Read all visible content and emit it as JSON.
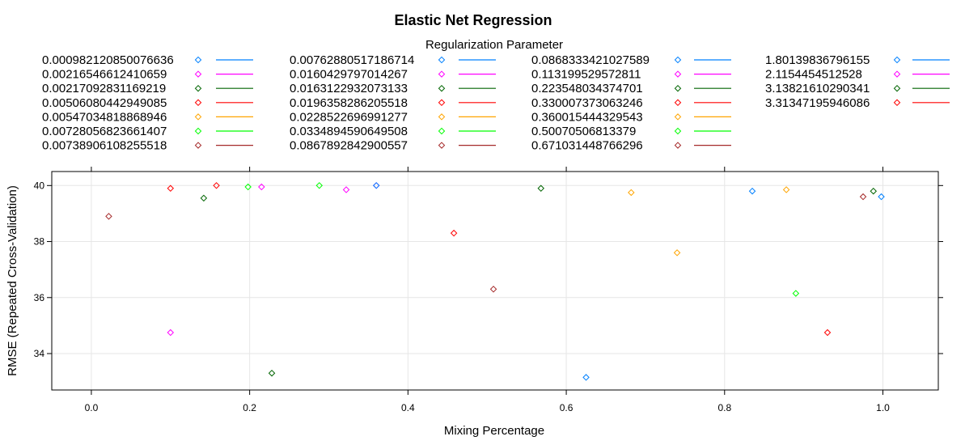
{
  "chart_data": {
    "type": "scatter",
    "title": "Elastic Net Regression",
    "legend_title": "Regularization Parameter",
    "legend_placement": "top",
    "xlabel": "Mixing Percentage",
    "ylabel": "RMSE (Repeated Cross-Validation)",
    "xlim": [
      -0.05,
      1.07
    ],
    "ylim": [
      32.7,
      40.5
    ],
    "x_ticks": [
      "0.0",
      "0.2",
      "0.4",
      "0.6",
      "0.8",
      "1.0"
    ],
    "y_ticks": [
      "34",
      "36",
      "38",
      "40"
    ],
    "grid": true,
    "series": [
      {
        "name": "0.000982120850076636",
        "color": "#0080FF",
        "points": [
          {
            "x": 0.835,
            "y": 39.8
          }
        ]
      },
      {
        "name": "0.00216546612410659",
        "color": "#FF00FF",
        "points": [
          {
            "x": 0.1,
            "y": 34.75
          }
        ]
      },
      {
        "name": "0.00217092831169219",
        "color": "#006400",
        "points": [
          {
            "x": 0.142,
            "y": 39.55
          }
        ]
      },
      {
        "name": "0.00506080442949085",
        "color": "#FF0000",
        "points": [
          {
            "x": 0.458,
            "y": 38.3
          }
        ]
      },
      {
        "name": "0.00547034818868946",
        "color": "#FFA500",
        "points": [
          {
            "x": 0.74,
            "y": 37.6
          }
        ]
      },
      {
        "name": "0.00728056823661407",
        "color": "#00FF00",
        "points": [
          {
            "x": 0.89,
            "y": 36.15
          }
        ]
      },
      {
        "name": "0.00738906108255518",
        "color": "#A52A2A",
        "points": [
          {
            "x": 0.508,
            "y": 36.3
          }
        ]
      },
      {
        "name": "0.00762880517186714",
        "color": "#0080FF",
        "points": [
          {
            "x": 0.625,
            "y": 33.15
          }
        ]
      },
      {
        "name": "0.0160429797014267",
        "color": "#FF00FF",
        "points": [
          {
            "x": 0.215,
            "y": 39.95
          }
        ]
      },
      {
        "name": "0.0163122932073133",
        "color": "#006400",
        "points": [
          {
            "x": 0.228,
            "y": 33.3
          }
        ]
      },
      {
        "name": "0.0196358286205518",
        "color": "#FF0000",
        "points": [
          {
            "x": 0.93,
            "y": 34.75
          }
        ]
      },
      {
        "name": "0.0228522696991277",
        "color": "#FFA500",
        "points": [
          {
            "x": 0.878,
            "y": 39.85
          }
        ]
      },
      {
        "name": "0.0334894590649508",
        "color": "#00FF00",
        "points": [
          {
            "x": 0.198,
            "y": 39.95
          }
        ]
      },
      {
        "name": "0.0867892842900557",
        "color": "#A52A2A",
        "points": [
          {
            "x": 0.022,
            "y": 38.9
          }
        ]
      },
      {
        "name": "0.0868333421027589",
        "color": "#0080FF",
        "points": [
          {
            "x": 0.998,
            "y": 39.6
          }
        ]
      },
      {
        "name": "0.113199529572811",
        "color": "#FF00FF",
        "points": [
          {
            "x": 0.36,
            "y": 40.0
          }
        ]
      },
      {
        "name": "0.223548034374701",
        "color": "#006400",
        "points": [
          {
            "x": 0.568,
            "y": 39.9
          }
        ]
      },
      {
        "name": "0.330007373063246",
        "color": "#FF0000",
        "points": [
          {
            "x": 0.158,
            "y": 40.0
          }
        ]
      },
      {
        "name": "0.360015444329543",
        "color": "#FFA500",
        "points": [
          {
            "x": 0.682,
            "y": 39.75
          }
        ]
      },
      {
        "name": "0.50070506813379",
        "color": "#00FF00",
        "points": [
          {
            "x": 0.288,
            "y": 40.0
          }
        ]
      },
      {
        "name": "0.671031448766296",
        "color": "#A52A2A",
        "points": [
          {
            "x": 0.975,
            "y": 39.6
          }
        ]
      },
      {
        "name": "1.80139836796155",
        "color": "#0080FF",
        "points": [
          {
            "x": 0.36,
            "y": 40.0
          }
        ]
      },
      {
        "name": "2.1154454512528",
        "color": "#FF00FF",
        "points": [
          {
            "x": 0.322,
            "y": 39.85
          }
        ]
      },
      {
        "name": "3.13821610290341",
        "color": "#006400",
        "points": [
          {
            "x": 0.988,
            "y": 39.8
          }
        ]
      },
      {
        "name": "3.31347195946086",
        "color": "#FF0000",
        "points": [
          {
            "x": 0.1,
            "y": 39.9
          }
        ]
      }
    ]
  }
}
